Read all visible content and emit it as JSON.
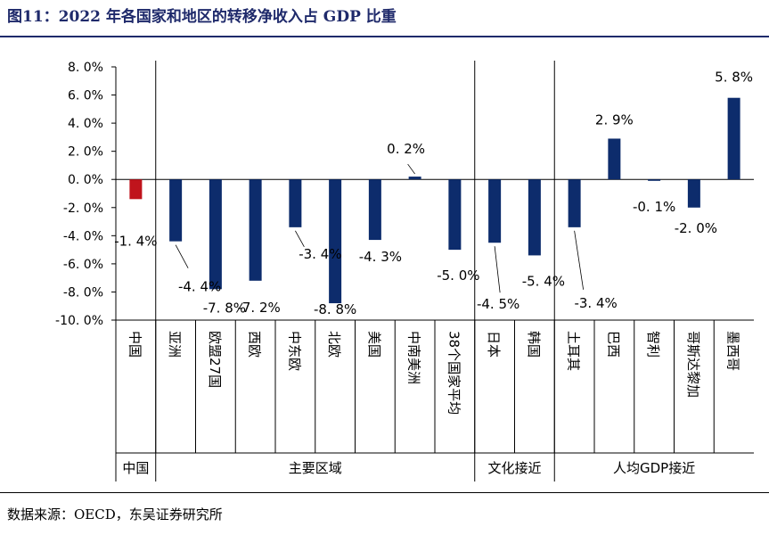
{
  "figure": {
    "title": "图11：2022 年各国家和地区的转移净收入占 GDP 比重",
    "source": "数据来源：OECD，东吴证券研究所"
  },
  "colors": {
    "negative_china": "#c0141c",
    "bar": "#0d2c6c",
    "axis": "#000000"
  },
  "chart_data": {
    "type": "bar",
    "title": "",
    "xlabel": "",
    "ylabel": "",
    "ylim": [
      -10,
      8
    ],
    "yticks": [
      8,
      6,
      4,
      2,
      0,
      -2,
      -4,
      -6,
      -8,
      -10
    ],
    "ytick_labels": [
      "8. 0%",
      "6. 0%",
      "4. 0%",
      "2. 0%",
      "0. 0%",
      "-2. 0%",
      "-4. 0%",
      "-6. 0%",
      "-8. 0%",
      "-10. 0%"
    ],
    "categories": [
      "中国",
      "亚洲",
      "欧盟27国",
      "西欧",
      "中东欧",
      "北欧",
      "美国",
      "中南美洲",
      "38个国家平均",
      "日本",
      "韩国",
      "土耳其",
      "巴西",
      "智利",
      "哥斯达黎加",
      "墨西哥"
    ],
    "values": [
      -1.4,
      -4.4,
      -7.8,
      -7.2,
      -3.4,
      -8.8,
      -4.3,
      0.2,
      -5.0,
      -4.5,
      -5.4,
      -3.4,
      2.9,
      -0.1,
      -2.0,
      5.8
    ],
    "data_labels": [
      "-1. 4%",
      "-4. 4%",
      "-7. 8%",
      "-7. 2%",
      "-3. 4%",
      "-8. 8%",
      "-4. 3%",
      "0. 2%",
      "-5. 0%",
      "-4. 5%",
      "-5. 4%",
      "-3. 4%",
      "2. 9%",
      "-0. 1%",
      "-2. 0%",
      "5. 8%"
    ],
    "groups": [
      {
        "label": "中国",
        "count": 1
      },
      {
        "label": "主要区域",
        "count": 8
      },
      {
        "label": "文化接近",
        "count": 2
      },
      {
        "label": "人均GDP接近",
        "count": 5
      }
    ],
    "grid": false,
    "legend": "none"
  }
}
